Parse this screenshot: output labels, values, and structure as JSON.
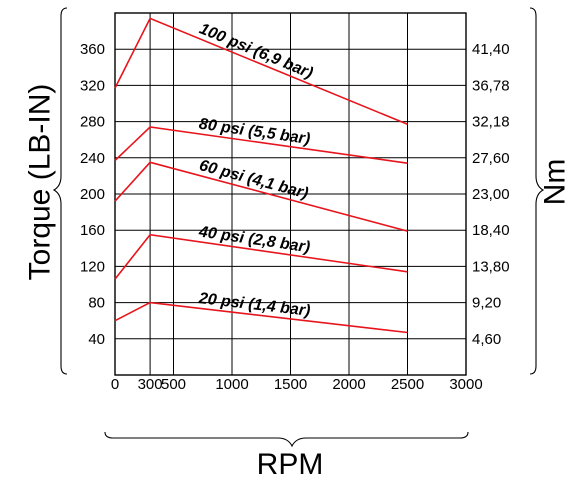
{
  "chart_data": {
    "type": "line",
    "xlabel": "RPM",
    "ylabel": "Torque (LB-IN)",
    "y2label": "Nm",
    "xlim": [
      0,
      3000
    ],
    "ylim": [
      0,
      400
    ],
    "grid": true,
    "x_ticks": [
      "0",
      "300",
      "500",
      "1000",
      "1500",
      "2000",
      "2500",
      "3000"
    ],
    "y_ticks": [
      "40",
      "80",
      "120",
      "160",
      "200",
      "240",
      "280",
      "320",
      "360"
    ],
    "y2_ticks": [
      "4,60",
      "9,20",
      "13,80",
      "18,40",
      "23,00",
      "27,60",
      "32,18",
      "36,78",
      "41,40"
    ],
    "series": [
      {
        "name": "100 psi (6,9 bar)",
        "x": [
          0,
          300,
          2500
        ],
        "y": [
          317,
          394,
          277
        ]
      },
      {
        "name": "80 psi (5,5 bar)",
        "x": [
          0,
          300,
          2500
        ],
        "y": [
          237,
          274,
          234
        ]
      },
      {
        "name": "60 psi (4,1 bar)",
        "x": [
          0,
          300,
          2500
        ],
        "y": [
          192,
          235,
          159
        ]
      },
      {
        "name": "40 psi (2,8 bar)",
        "x": [
          0,
          300,
          2500
        ],
        "y": [
          106,
          155,
          114
        ]
      },
      {
        "name": "20 psi (1,4 bar)",
        "x": [
          0,
          300,
          2500
        ],
        "y": [
          60,
          80,
          47
        ]
      }
    ],
    "line_color": "#e8141c"
  }
}
